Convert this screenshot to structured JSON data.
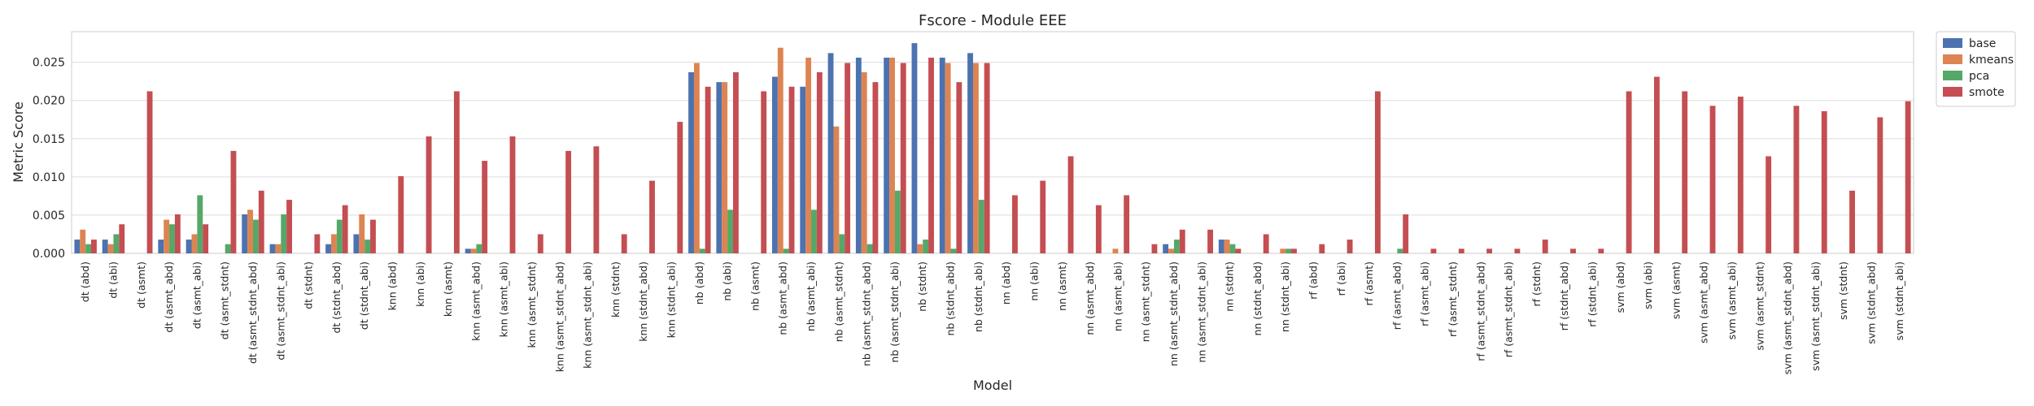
{
  "chart_data": {
    "type": "bar",
    "title": "Fscore - Module EEE",
    "xlabel": "Model",
    "ylabel": "Metric Score",
    "ylim": [
      0,
      0.029
    ],
    "yticks": [
      0.0,
      0.005,
      0.01,
      0.015,
      0.02,
      0.025
    ],
    "ytick_labels": [
      "0.000",
      "0.005",
      "0.010",
      "0.015",
      "0.020",
      "0.025"
    ],
    "grid": true,
    "legend_position": "top-right outside",
    "colors": {
      "base": "#4c72b0",
      "kmeans": "#dd8452",
      "pca": "#55a868",
      "smote": "#c44e52"
    },
    "categories": [
      "dt (abd)",
      "dt (abi)",
      "dt (asmt)",
      "dt (asmt_abd)",
      "dt (asmt_abi)",
      "dt (asmt_stdnt)",
      "dt (asmt_stdnt_abd)",
      "dt (asmt_stdnt_abi)",
      "dt (stdnt)",
      "dt (stdnt_abd)",
      "dt (stdnt_abi)",
      "knn (abd)",
      "knn (abi)",
      "knn (asmt)",
      "knn (asmt_abd)",
      "knn (asmt_abi)",
      "knn (asmt_stdnt)",
      "knn (asmt_stdnt_abd)",
      "knn (asmt_stdnt_abi)",
      "knn (stdnt)",
      "knn (stdnt_abd)",
      "knn (stdnt_abi)",
      "nb (abd)",
      "nb (abi)",
      "nb (asmt)",
      "nb (asmt_abd)",
      "nb (asmt_abi)",
      "nb (asmt_stdnt)",
      "nb (asmt_stdnt_abd)",
      "nb (asmt_stdnt_abi)",
      "nb (stdnt)",
      "nb (stdnt_abd)",
      "nb (stdnt_abi)",
      "nn (abd)",
      "nn (abi)",
      "nn (asmt)",
      "nn (asmt_abd)",
      "nn (asmt_abi)",
      "nn (asmt_stdnt)",
      "nn (asmt_stdnt_abd)",
      "nn (asmt_stdnt_abi)",
      "nn (stdnt)",
      "nn (stdnt_abd)",
      "nn (stdnt_abi)",
      "rf (abd)",
      "rf (abi)",
      "rf (asmt)",
      "rf (asmt_abd)",
      "rf (asmt_abi)",
      "rf (asmt_stdnt)",
      "rf (asmt_stdnt_abd)",
      "rf (asmt_stdnt_abi)",
      "rf (stdnt)",
      "rf (stdnt_abd)",
      "rf (stdnt_abi)",
      "svm (abd)",
      "svm (abi)",
      "svm (asmt)",
      "svm (asmt_abd)",
      "svm (asmt_abi)",
      "svm (asmt_stdnt)",
      "svm (asmt_stdnt_abd)",
      "svm (asmt_stdnt_abi)",
      "svm (stdnt)",
      "svm (stdnt_abd)",
      "svm (stdnt_abi)"
    ],
    "series": [
      {
        "name": "base",
        "values": [
          0.0018,
          0.0018,
          0,
          0.0018,
          0.0018,
          0,
          0.0051,
          0.0012,
          0,
          0.0012,
          0.0025,
          0,
          0,
          0,
          0.0006,
          0,
          0,
          0,
          0,
          0,
          0,
          0,
          0.0237,
          0.0224,
          0,
          0.0231,
          0.0218,
          0.0262,
          0.0256,
          0.0256,
          0.0275,
          0.0256,
          0.0262,
          0,
          0,
          0,
          0,
          0,
          0,
          0.0012,
          0,
          0.0018,
          0,
          0,
          0,
          0,
          0,
          0,
          0,
          0,
          0,
          0,
          0,
          0,
          0,
          0,
          0,
          0,
          0,
          0,
          0,
          0,
          0,
          0,
          0,
          0
        ]
      },
      {
        "name": "kmeans",
        "values": [
          0.0031,
          0.0012,
          0,
          0.0044,
          0.0025,
          0,
          0.0057,
          0.0012,
          0,
          0.0025,
          0.0051,
          0,
          0,
          0,
          0.0006,
          0,
          0,
          0,
          0,
          0,
          0,
          0,
          0.0249,
          0.0224,
          0,
          0.0269,
          0.0256,
          0.0166,
          0.0237,
          0.0256,
          0.0012,
          0.0249,
          0.0249,
          0,
          0,
          0,
          0,
          0.0006,
          0,
          0.0006,
          0,
          0.0018,
          0,
          0.0006,
          0,
          0,
          0,
          0,
          0,
          0,
          0,
          0,
          0,
          0,
          0,
          0,
          0,
          0,
          0,
          0,
          0,
          0,
          0,
          0,
          0,
          0
        ]
      },
      {
        "name": "pca",
        "values": [
          0.0012,
          0.0025,
          0,
          0.0038,
          0.0076,
          0.0012,
          0.0044,
          0.0051,
          0,
          0.0044,
          0.0018,
          0,
          0,
          0,
          0.0012,
          0,
          0,
          0,
          0,
          0,
          0,
          0,
          0.0006,
          0.0057,
          0,
          0.0006,
          0.0057,
          0.0025,
          0.0012,
          0.0082,
          0.0018,
          0.0006,
          0.007,
          0,
          0,
          0,
          0,
          0,
          0,
          0.0018,
          0,
          0.0012,
          0,
          0.0006,
          0,
          0,
          0,
          0.0006,
          0,
          0,
          0,
          0,
          0,
          0,
          0,
          0,
          0,
          0,
          0,
          0,
          0,
          0,
          0,
          0,
          0,
          0
        ]
      },
      {
        "name": "smote",
        "values": [
          0.0018,
          0.0038,
          0.0212,
          0.0051,
          0.0038,
          0.0134,
          0.0082,
          0.007,
          0.0025,
          0.0063,
          0.0044,
          0.0101,
          0.0153,
          0.0212,
          0.0121,
          0.0153,
          0.0025,
          0.0134,
          0.014,
          0.0025,
          0.0095,
          0.0172,
          0.0218,
          0.0237,
          0.0212,
          0.0218,
          0.0237,
          0.0249,
          0.0224,
          0.0249,
          0.0256,
          0.0224,
          0.0249,
          0.0076,
          0.0095,
          0.0127,
          0.0063,
          0.0076,
          0.0012,
          0.0031,
          0.0031,
          0.0006,
          0.0025,
          0.0006,
          0.0012,
          0.0018,
          0.0212,
          0.0051,
          0.0006,
          0.0006,
          0.0006,
          0.0006,
          0.0018,
          0.0006,
          0.0006,
          0.0212,
          0.0231,
          0.0212,
          0.0193,
          0.0205,
          0.0127,
          0.0193,
          0.0186,
          0.0082,
          0.0178,
          0.0199
        ]
      }
    ]
  }
}
